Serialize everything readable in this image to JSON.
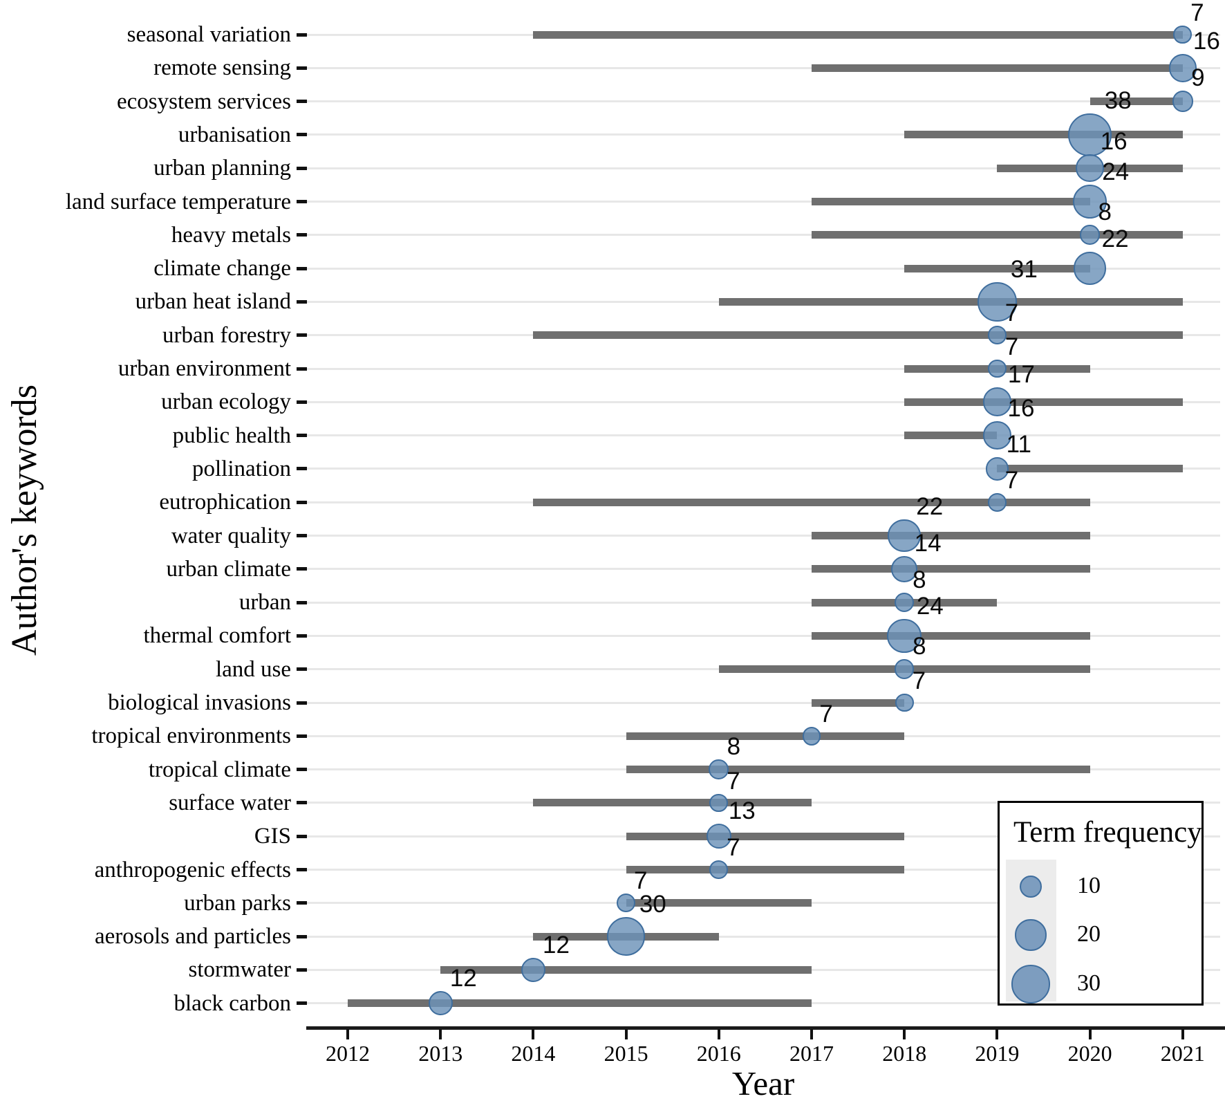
{
  "chart_data": {
    "type": "scatter",
    "subtype": "bubble-timeline-with-ranges",
    "title": "",
    "xlabel": "Year",
    "ylabel": "Author's keywords",
    "x_ticks": [
      2012,
      2013,
      2014,
      2015,
      2016,
      2017,
      2018,
      2019,
      2020,
      2021
    ],
    "xlim": [
      2011.6,
      2021.4
    ],
    "grid": "horizontal-only",
    "background": "white",
    "legend": {
      "title": "Term frequency",
      "sizes": [
        "10",
        "20",
        "30"
      ],
      "position": "bottom-right"
    },
    "series": [
      {
        "keyword": "seasonal variation",
        "range": [
          2014,
          2021
        ],
        "bubble_year": 2021,
        "frequency": 7
      },
      {
        "keyword": "remote sensing",
        "range": [
          2017,
          2021
        ],
        "bubble_year": 2021,
        "frequency": 16
      },
      {
        "keyword": "ecosystem services",
        "range": [
          2020,
          2021
        ],
        "bubble_year": 2021,
        "frequency": 9
      },
      {
        "keyword": "urbanisation",
        "range": [
          2018,
          2021
        ],
        "bubble_year": 2020,
        "frequency": 38
      },
      {
        "keyword": "urban planning",
        "range": [
          2019,
          2021
        ],
        "bubble_year": 2020,
        "frequency": 16
      },
      {
        "keyword": "land surface temperature",
        "range": [
          2017,
          2020
        ],
        "bubble_year": 2020,
        "frequency": 24
      },
      {
        "keyword": "heavy metals",
        "range": [
          2017,
          2021
        ],
        "bubble_year": 2020,
        "frequency": 8
      },
      {
        "keyword": "climate change",
        "range": [
          2018,
          2020
        ],
        "bubble_year": 2020,
        "frequency": 22
      },
      {
        "keyword": "urban heat island",
        "range": [
          2016,
          2021
        ],
        "bubble_year": 2019,
        "frequency": 31
      },
      {
        "keyword": "urban forestry",
        "range": [
          2014,
          2021
        ],
        "bubble_year": 2019,
        "frequency": 7
      },
      {
        "keyword": "urban environment",
        "range": [
          2018,
          2020
        ],
        "bubble_year": 2019,
        "frequency": 7
      },
      {
        "keyword": "urban ecology",
        "range": [
          2018,
          2021
        ],
        "bubble_year": 2019,
        "frequency": 17
      },
      {
        "keyword": "public health",
        "range": [
          2018,
          2019
        ],
        "bubble_year": 2019,
        "frequency": 16
      },
      {
        "keyword": "pollination",
        "range": [
          2019,
          2021
        ],
        "bubble_year": 2019,
        "frequency": 11
      },
      {
        "keyword": "eutrophication",
        "range": [
          2014,
          2020
        ],
        "bubble_year": 2019,
        "frequency": 7
      },
      {
        "keyword": "water quality",
        "range": [
          2017,
          2020
        ],
        "bubble_year": 2018,
        "frequency": 22
      },
      {
        "keyword": "urban climate",
        "range": [
          2017,
          2020
        ],
        "bubble_year": 2018,
        "frequency": 14
      },
      {
        "keyword": "urban",
        "range": [
          2017,
          2019
        ],
        "bubble_year": 2018,
        "frequency": 8
      },
      {
        "keyword": "thermal comfort",
        "range": [
          2017,
          2020
        ],
        "bubble_year": 2018,
        "frequency": 24
      },
      {
        "keyword": "land use",
        "range": [
          2016,
          2020
        ],
        "bubble_year": 2018,
        "frequency": 8
      },
      {
        "keyword": "biological invasions",
        "range": [
          2017,
          2018
        ],
        "bubble_year": 2018,
        "frequency": 7
      },
      {
        "keyword": "tropical environments",
        "range": [
          2015,
          2018
        ],
        "bubble_year": 2017,
        "frequency": 7
      },
      {
        "keyword": "tropical climate",
        "range": [
          2015,
          2020
        ],
        "bubble_year": 2016,
        "frequency": 8
      },
      {
        "keyword": "surface water",
        "range": [
          2014,
          2017
        ],
        "bubble_year": 2016,
        "frequency": 7
      },
      {
        "keyword": "GIS",
        "range": [
          2015,
          2018
        ],
        "bubble_year": 2016,
        "frequency": 13
      },
      {
        "keyword": "anthropogenic effects",
        "range": [
          2015,
          2018
        ],
        "bubble_year": 2016,
        "frequency": 7
      },
      {
        "keyword": "urban parks",
        "range": [
          2015,
          2017
        ],
        "bubble_year": 2015,
        "frequency": 7
      },
      {
        "keyword": "aerosols and particles",
        "range": [
          2014,
          2016
        ],
        "bubble_year": 2015,
        "frequency": 30
      },
      {
        "keyword": "stormwater",
        "range": [
          2013,
          2017
        ],
        "bubble_year": 2014,
        "frequency": 12
      },
      {
        "keyword": "black carbon",
        "range": [
          2012,
          2017
        ],
        "bubble_year": 2013,
        "frequency": 12
      }
    ]
  },
  "colors": {
    "bubble_fill": "#6d92b8",
    "bubble_stroke": "#3f6e9e",
    "range_bar": "#6f6f6f",
    "gridline": "#e7e7e7",
    "axis": "#1a1a1a",
    "text": "#000000",
    "legend_key_bg": "#ececec",
    "background": "#ffffff"
  }
}
